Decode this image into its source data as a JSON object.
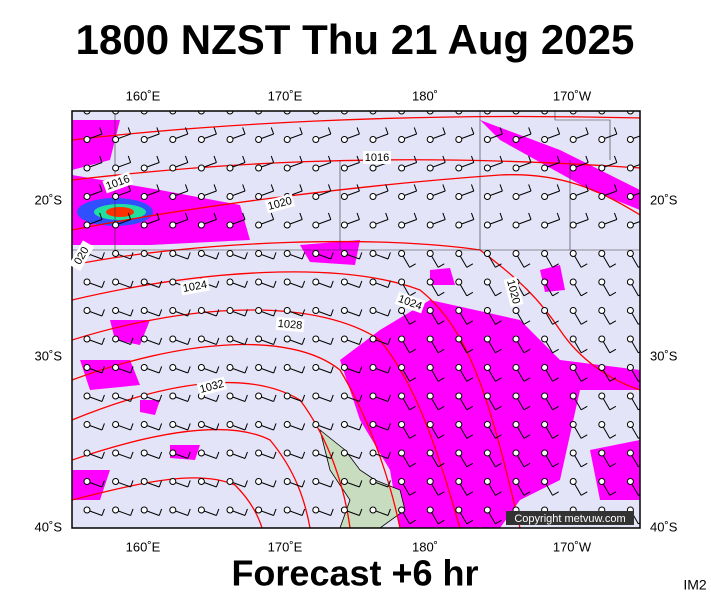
{
  "title": "1800 NZST Thu 21 Aug 2025",
  "top_axis_labels": [
    "160˚E",
    "170˚E",
    "180˚",
    "170˚W"
  ],
  "bottom_axis_labels": [
    "160˚E",
    "170˚E",
    "180˚",
    "170˚W"
  ],
  "left_axis_labels": [
    "20˚S",
    "30˚S",
    "40˚S"
  ],
  "right_axis_labels": [
    "20˚S",
    "30˚S",
    "40˚S"
  ],
  "isobar_labels": [
    "1016",
    "1016",
    "1020",
    "020",
    "1024",
    "1024",
    "1028",
    "1032",
    "1020"
  ],
  "copyright": "Copyright metvuw.com",
  "footer": "Forecast +6 hr",
  "corner_label": "IM2"
}
